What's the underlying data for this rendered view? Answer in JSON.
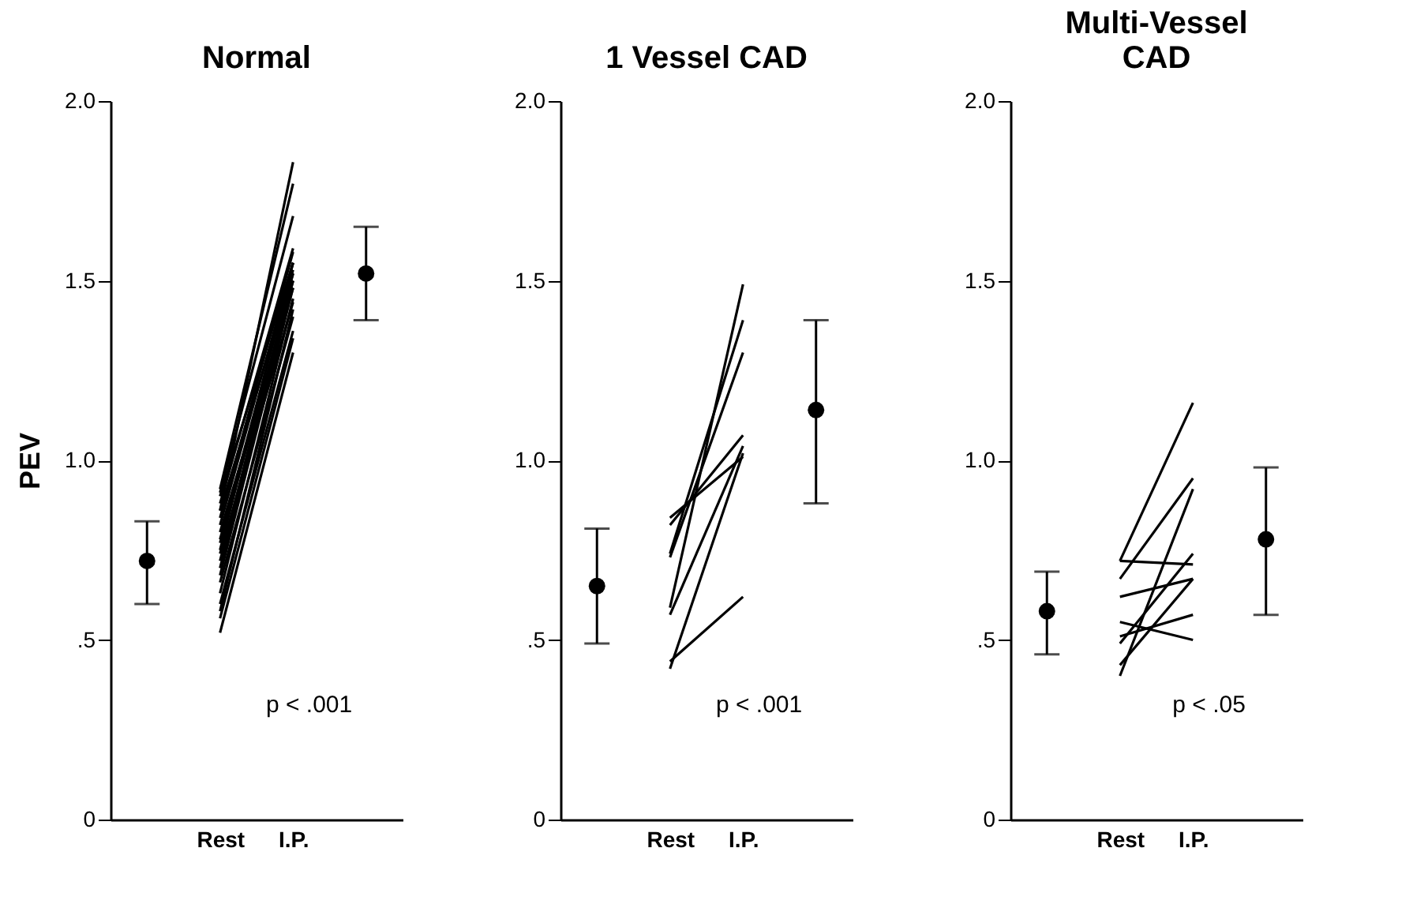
{
  "chart_data": [
    {
      "type": "line",
      "title": "Normal",
      "ylabel": "PEV",
      "categories": [
        null,
        "Rest",
        "I.P.",
        null
      ],
      "ylim": [
        0,
        2
      ],
      "yticks": [
        0,
        {
          "value": 0.5,
          "label": ".5"
        },
        {
          "value": 1,
          "label": "1.0"
        },
        {
          "value": 1.5,
          "label": "1.5"
        },
        {
          "value": 2,
          "label": "2.0"
        }
      ],
      "grid": false,
      "legend": false,
      "marker": "none",
      "annotations": [
        "p < .001"
      ],
      "series": [
        {
          "color": "#000000",
          "values": [
            null,
            0.52,
            1.3,
            null
          ]
        },
        {
          "color": "#000000",
          "values": [
            null,
            0.56,
            1.34,
            null
          ]
        },
        {
          "color": "#000000",
          "values": [
            null,
            0.58,
            1.42,
            null
          ]
        },
        {
          "color": "#000000",
          "values": [
            null,
            0.6,
            1.36,
            null
          ]
        },
        {
          "color": "#000000",
          "values": [
            null,
            0.63,
            1.45,
            null
          ]
        },
        {
          "color": "#000000",
          "values": [
            null,
            0.66,
            1.4,
            null
          ]
        },
        {
          "color": "#000000",
          "values": [
            null,
            0.68,
            1.48,
            null
          ]
        },
        {
          "color": "#000000",
          "values": [
            null,
            0.7,
            1.5,
            null
          ]
        },
        {
          "color": "#000000",
          "values": [
            null,
            0.72,
            1.52,
            null
          ]
        },
        {
          "color": "#000000",
          "values": [
            null,
            0.74,
            1.44,
            null
          ]
        },
        {
          "color": "#000000",
          "values": [
            null,
            0.75,
            1.55,
            null
          ]
        },
        {
          "color": "#000000",
          "values": [
            null,
            0.77,
            1.5,
            null
          ]
        },
        {
          "color": "#000000",
          "values": [
            null,
            0.78,
            1.53,
            null
          ]
        },
        {
          "color": "#000000",
          "values": [
            null,
            0.8,
            1.48,
            null
          ]
        },
        {
          "color": "#000000",
          "values": [
            null,
            0.82,
            1.55,
            null
          ]
        },
        {
          "color": "#000000",
          "values": [
            null,
            0.84,
            1.58,
            null
          ]
        },
        {
          "color": "#000000",
          "values": [
            null,
            0.86,
            1.52,
            null
          ]
        },
        {
          "color": "#000000",
          "values": [
            null,
            0.88,
            1.59,
            null
          ]
        },
        {
          "color": "#000000",
          "values": [
            null,
            0.9,
            1.55,
            null
          ]
        },
        {
          "color": "#000000",
          "values": [
            null,
            0.91,
            1.68,
            null
          ]
        },
        {
          "color": "#000000",
          "values": [
            null,
            0.92,
            1.77,
            null
          ]
        },
        {
          "color": "#000000",
          "values": [
            null,
            0.86,
            1.83,
            null
          ]
        },
        {
          "type": "scatter",
          "marker": "circle",
          "color": "#000000",
          "values": [
            0.72,
            null,
            null,
            1.52
          ],
          "errors": [
            [
              0.6,
              0.83
            ],
            null,
            null,
            [
              1.39,
              1.65
            ]
          ]
        }
      ]
    },
    {
      "type": "line",
      "title": "1 Vessel CAD",
      "categories": [
        null,
        "Rest",
        "I.P.",
        null
      ],
      "ylim": [
        0,
        2
      ],
      "yticks": [
        0,
        {
          "value": 0.5,
          "label": ".5"
        },
        {
          "value": 1,
          "label": "1.0"
        },
        {
          "value": 1.5,
          "label": "1.5"
        },
        {
          "value": 2,
          "label": "2.0"
        }
      ],
      "grid": false,
      "legend": false,
      "marker": "none",
      "annotations": [
        "p < .001"
      ],
      "series": [
        {
          "color": "#000000",
          "values": [
            null,
            0.59,
            1.49,
            null
          ]
        },
        {
          "color": "#000000",
          "values": [
            null,
            0.74,
            1.39,
            null
          ]
        },
        {
          "color": "#000000",
          "values": [
            null,
            0.73,
            1.3,
            null
          ]
        },
        {
          "color": "#000000",
          "values": [
            null,
            0.84,
            1.01,
            null
          ]
        },
        {
          "color": "#000000",
          "values": [
            null,
            0.82,
            1.07,
            null
          ]
        },
        {
          "color": "#000000",
          "values": [
            null,
            0.57,
            1.04,
            null
          ]
        },
        {
          "color": "#000000",
          "values": [
            null,
            0.42,
            1.02,
            null
          ]
        },
        {
          "color": "#000000",
          "values": [
            null,
            0.44,
            0.62,
            null
          ]
        },
        {
          "type": "scatter",
          "marker": "circle",
          "color": "#000000",
          "values": [
            0.65,
            null,
            null,
            1.14
          ],
          "errors": [
            [
              0.49,
              0.81
            ],
            null,
            null,
            [
              0.88,
              1.39
            ]
          ]
        }
      ]
    },
    {
      "type": "line",
      "title": "Multi-Vessel\nCAD",
      "categories": [
        null,
        "Rest",
        "I.P.",
        null
      ],
      "ylim": [
        0,
        2
      ],
      "yticks": [
        0,
        {
          "value": 0.5,
          "label": ".5"
        },
        {
          "value": 1,
          "label": "1.0"
        },
        {
          "value": 1.5,
          "label": "1.5"
        },
        {
          "value": 2,
          "label": "2.0"
        }
      ],
      "grid": false,
      "legend": false,
      "marker": "none",
      "annotations": [
        "p < .05"
      ],
      "series": [
        {
          "color": "#000000",
          "values": [
            null,
            0.72,
            1.16,
            null
          ]
        },
        {
          "color": "#000000",
          "values": [
            null,
            0.72,
            0.71,
            null
          ]
        },
        {
          "color": "#000000",
          "values": [
            null,
            0.67,
            0.95,
            null
          ]
        },
        {
          "color": "#000000",
          "values": [
            null,
            0.62,
            0.67,
            null
          ]
        },
        {
          "color": "#000000",
          "values": [
            null,
            0.55,
            0.5,
            null
          ]
        },
        {
          "color": "#000000",
          "values": [
            null,
            0.51,
            0.57,
            null
          ]
        },
        {
          "color": "#000000",
          "values": [
            null,
            0.49,
            0.74,
            null
          ]
        },
        {
          "color": "#000000",
          "values": [
            null,
            0.43,
            0.67,
            null
          ]
        },
        {
          "color": "#000000",
          "values": [
            null,
            0.4,
            0.92,
            null
          ]
        },
        {
          "type": "scatter",
          "marker": "circle",
          "color": "#000000",
          "values": [
            0.58,
            null,
            null,
            0.78
          ],
          "errors": [
            [
              0.46,
              0.69
            ],
            null,
            null,
            [
              0.57,
              0.98
            ]
          ]
        }
      ]
    }
  ]
}
